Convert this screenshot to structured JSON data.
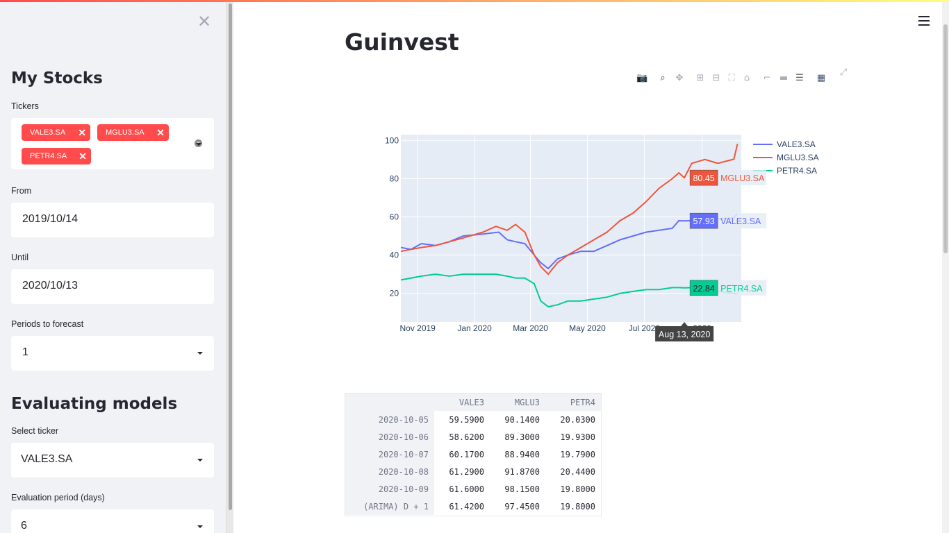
{
  "sidebar": {
    "close_icon": "close-icon",
    "section1_title": "My Stocks",
    "tickers_label": "Tickers",
    "tickers": [
      "VALE3.SA",
      "MGLU3.SA",
      "PETR4.SA"
    ],
    "from_label": "From",
    "from_value": "2019/10/14",
    "until_label": "Until",
    "until_value": "2020/10/13",
    "periods_label": "Periods to forecast",
    "periods_value": "1",
    "section2_title": "Evaluating models",
    "select_ticker_label": "Select ticker",
    "select_ticker_value": "VALE3.SA",
    "eval_period_label": "Evaluation period (days)",
    "eval_period_value": "6"
  },
  "main": {
    "title": "Guinvest",
    "menu_icon": "hamburger-icon"
  },
  "modebar": [
    "camera-icon",
    "zoom-icon",
    "pan-icon",
    "zoom-in-icon",
    "zoom-out-icon",
    "autoscale-icon",
    "reset-axes-icon",
    "spike-lines-icon",
    "hover-closest-icon",
    "hover-compare-icon",
    "plotly-logo-icon",
    "fullscreen-icon"
  ],
  "chart_data": {
    "type": "line",
    "x_ticks": [
      "Nov 2019",
      "Jan 2020",
      "Mar 2020",
      "May 2020",
      "Jul 2020",
      "2020"
    ],
    "y_ticks": [
      "20",
      "40",
      "60",
      "80",
      "100"
    ],
    "ylim": [
      5,
      103
    ],
    "xlim": [
      "2019-10-14",
      "2020-10-13"
    ],
    "grid": true,
    "legend_position": "right",
    "hover_date": "Aug 13, 2020",
    "series": [
      {
        "name": "VALE3.SA",
        "color": "#636efa",
        "hover_value": "57.93",
        "points": [
          [
            "2019-10-14",
            44
          ],
          [
            "2019-10-25",
            43
          ],
          [
            "2019-11-05",
            46
          ],
          [
            "2019-11-20",
            45
          ],
          [
            "2019-12-05",
            47
          ],
          [
            "2019-12-20",
            50
          ],
          [
            "2020-01-10",
            51
          ],
          [
            "2020-01-27",
            52
          ],
          [
            "2020-02-05",
            48
          ],
          [
            "2020-02-14",
            47
          ],
          [
            "2020-02-24",
            46
          ],
          [
            "2020-03-05",
            40
          ],
          [
            "2020-03-12",
            36
          ],
          [
            "2020-03-20",
            33
          ],
          [
            "2020-03-30",
            38
          ],
          [
            "2020-04-10",
            40
          ],
          [
            "2020-04-24",
            42
          ],
          [
            "2020-05-08",
            42
          ],
          [
            "2020-05-22",
            45
          ],
          [
            "2020-06-05",
            48
          ],
          [
            "2020-06-19",
            50
          ],
          [
            "2020-07-03",
            52
          ],
          [
            "2020-07-17",
            53
          ],
          [
            "2020-07-31",
            54
          ],
          [
            "2020-08-07",
            58
          ],
          [
            "2020-08-13",
            57.93
          ],
          [
            "2020-08-21",
            58
          ],
          [
            "2020-09-04",
            59
          ],
          [
            "2020-09-18",
            59
          ],
          [
            "2020-10-05",
            59.59
          ],
          [
            "2020-10-09",
            61.6
          ]
        ]
      },
      {
        "name": "MGLU3.SA",
        "color": "#ef553b",
        "hover_value": "80.45",
        "points": [
          [
            "2019-10-14",
            42
          ],
          [
            "2019-10-25",
            43
          ],
          [
            "2019-11-05",
            44
          ],
          [
            "2019-11-20",
            45
          ],
          [
            "2019-12-05",
            47
          ],
          [
            "2019-12-20",
            49
          ],
          [
            "2020-01-10",
            52
          ],
          [
            "2020-01-24",
            55
          ],
          [
            "2020-02-05",
            53
          ],
          [
            "2020-02-14",
            56
          ],
          [
            "2020-02-24",
            52
          ],
          [
            "2020-03-05",
            40
          ],
          [
            "2020-03-12",
            34
          ],
          [
            "2020-03-20",
            30
          ],
          [
            "2020-03-30",
            36
          ],
          [
            "2020-04-10",
            40
          ],
          [
            "2020-04-24",
            44
          ],
          [
            "2020-05-08",
            48
          ],
          [
            "2020-05-22",
            52
          ],
          [
            "2020-06-05",
            58
          ],
          [
            "2020-06-19",
            62
          ],
          [
            "2020-07-03",
            68
          ],
          [
            "2020-07-17",
            75
          ],
          [
            "2020-07-31",
            80
          ],
          [
            "2020-08-07",
            83
          ],
          [
            "2020-08-13",
            80.45
          ],
          [
            "2020-08-21",
            88
          ],
          [
            "2020-09-04",
            90
          ],
          [
            "2020-09-18",
            88
          ],
          [
            "2020-10-05",
            90.14
          ],
          [
            "2020-10-09",
            98.15
          ]
        ]
      },
      {
        "name": "PETR4.SA",
        "color": "#00cc96",
        "hover_value": "22.84",
        "points": [
          [
            "2019-10-14",
            27
          ],
          [
            "2019-10-25",
            28
          ],
          [
            "2019-11-05",
            29
          ],
          [
            "2019-11-20",
            30
          ],
          [
            "2019-12-05",
            29
          ],
          [
            "2019-12-20",
            30
          ],
          [
            "2020-01-10",
            30
          ],
          [
            "2020-01-24",
            30
          ],
          [
            "2020-02-05",
            29
          ],
          [
            "2020-02-14",
            28
          ],
          [
            "2020-02-24",
            28
          ],
          [
            "2020-03-05",
            25
          ],
          [
            "2020-03-12",
            16
          ],
          [
            "2020-03-20",
            13
          ],
          [
            "2020-03-30",
            14
          ],
          [
            "2020-04-10",
            16
          ],
          [
            "2020-04-24",
            16
          ],
          [
            "2020-05-08",
            17
          ],
          [
            "2020-05-22",
            18
          ],
          [
            "2020-06-05",
            20
          ],
          [
            "2020-06-19",
            21
          ],
          [
            "2020-07-03",
            22
          ],
          [
            "2020-07-17",
            22
          ],
          [
            "2020-07-31",
            23
          ],
          [
            "2020-08-07",
            23
          ],
          [
            "2020-08-13",
            22.84
          ],
          [
            "2020-08-21",
            23
          ],
          [
            "2020-09-04",
            22
          ],
          [
            "2020-09-18",
            21
          ],
          [
            "2020-10-05",
            20.03
          ],
          [
            "2020-10-09",
            19.8
          ]
        ]
      }
    ]
  },
  "table": {
    "columns": [
      "",
      "VALE3",
      "MGLU3",
      "PETR4"
    ],
    "rows": [
      [
        "2020-10-05",
        "59.5900",
        "90.1400",
        "20.0300"
      ],
      [
        "2020-10-06",
        "58.6200",
        "89.3000",
        "19.9300"
      ],
      [
        "2020-10-07",
        "60.1700",
        "88.9400",
        "19.7900"
      ],
      [
        "2020-10-08",
        "61.2900",
        "91.8700",
        "20.4400"
      ],
      [
        "2020-10-09",
        "61.6000",
        "98.1500",
        "19.8000"
      ],
      [
        "(ARIMA) D + 1",
        "61.4200",
        "97.4500",
        "19.8000"
      ]
    ]
  }
}
